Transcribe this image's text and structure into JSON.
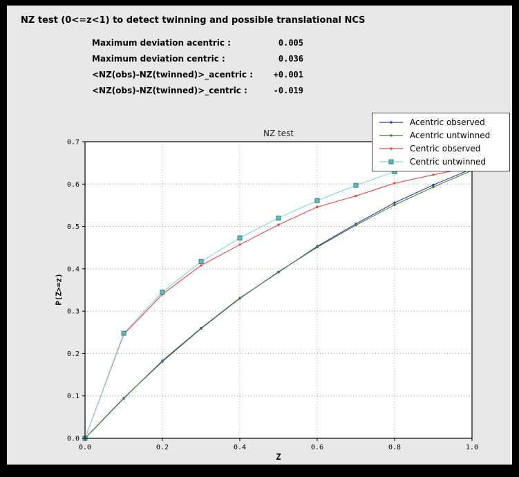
{
  "window": {
    "title": "NZ test (0<=z<1) to detect twinning and possible translational NCS"
  },
  "stats": {
    "rows": [
      {
        "label": "Maximum deviation acentric :",
        "value": "0.005"
      },
      {
        "label": "Maximum deviation centric :",
        "value": "0.036"
      },
      {
        "label": "<NZ(obs)-NZ(twinned)>_acentric :",
        "value": "+0.001"
      },
      {
        "label": "<NZ(obs)-NZ(twinned)>_centric :",
        "value": "-0.019"
      }
    ]
  },
  "chart_data": {
    "type": "line",
    "title": "NZ test",
    "xlabel": "Z",
    "ylabel": "P(Z>=z)",
    "xlim": [
      0.0,
      1.0
    ],
    "ylim": [
      0.0,
      0.7
    ],
    "xticks": [
      0.0,
      0.2,
      0.4,
      0.6,
      0.8,
      1.0
    ],
    "yticks": [
      0.0,
      0.1,
      0.2,
      0.3,
      0.4,
      0.5,
      0.6,
      0.7
    ],
    "grid": true,
    "legend_position": "upper right",
    "x": [
      0.0,
      0.1,
      0.2,
      0.3,
      0.4,
      0.5,
      0.6,
      0.7,
      0.8,
      0.9,
      1.0
    ],
    "series": [
      {
        "name": "Acentric observed",
        "color": "#2b3a9e",
        "marker": "dot",
        "values": [
          0.0,
          0.094,
          0.183,
          0.26,
          0.331,
          0.392,
          0.453,
          0.506,
          0.556,
          0.598,
          0.636
        ]
      },
      {
        "name": "Acentric untwinned",
        "color": "#4a7a3a",
        "marker": "dot",
        "values": [
          0.0,
          0.095,
          0.181,
          0.259,
          0.33,
          0.393,
          0.451,
          0.503,
          0.551,
          0.593,
          0.632
        ]
      },
      {
        "name": "Centric observed",
        "color": "#dd4a4a",
        "marker": "dot",
        "values": [
          0.0,
          0.245,
          0.34,
          0.408,
          0.457,
          0.504,
          0.546,
          0.572,
          0.602,
          0.622,
          0.64
        ]
      },
      {
        "name": "Centric untwinned",
        "color": "#8ad5d5",
        "marker": "square",
        "marker_fill": "#63bcb6",
        "marker_edge": "#2f7f7a",
        "values": [
          0.0,
          0.248,
          0.345,
          0.417,
          0.473,
          0.52,
          0.561,
          0.597,
          0.629,
          0.657,
          0.683
        ]
      }
    ]
  }
}
